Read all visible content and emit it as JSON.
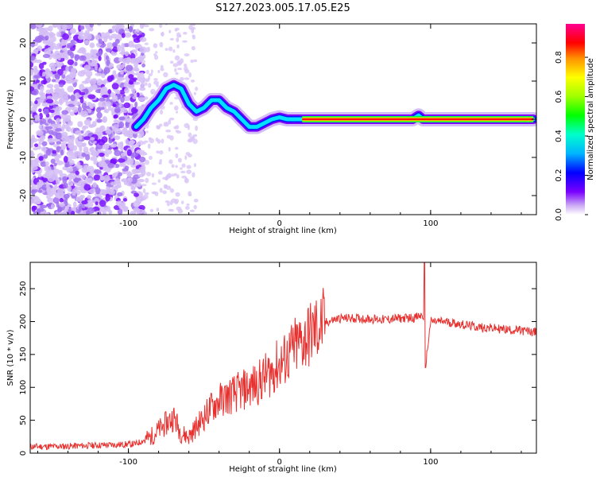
{
  "title": "S127.2023.005.17.05.E25",
  "chart_data": [
    {
      "type": "heatmap",
      "xlabel": "Height of straight line (km)",
      "ylabel": "Frequency (Hz)",
      "xlim": [
        -165,
        170
      ],
      "ylim": [
        -25,
        25
      ],
      "xticks": [
        -100,
        0,
        100
      ],
      "yticks": [
        -20,
        -10,
        0,
        10,
        20
      ],
      "colorbar": {
        "label": "Normalized spectral amplitude",
        "range": [
          0,
          0.97
        ],
        "ticks": [
          0.0,
          0.2,
          0.4,
          0.6,
          0.8
        ]
      },
      "ridge": {
        "description_points_x": [
          -95,
          -90,
          -85,
          -80,
          -75,
          -70,
          -65,
          -60,
          -55,
          -50,
          -45,
          -40,
          -35,
          -30,
          -25,
          -20,
          -15,
          -10,
          -5,
          0,
          5,
          10,
          15,
          20,
          40,
          60,
          80,
          88,
          92,
          95,
          100,
          120,
          140,
          160,
          168
        ],
        "description_points_y": [
          -2,
          0,
          3,
          5,
          8,
          9,
          8,
          4,
          2,
          3,
          5,
          5,
          3,
          2,
          0,
          -2,
          -2,
          -1,
          0,
          0.5,
          0,
          0,
          0,
          0,
          0,
          0,
          0,
          0,
          1,
          0,
          0,
          0,
          0,
          0,
          0
        ]
      }
    },
    {
      "type": "line",
      "xlabel": "Height of straight line (km)",
      "ylabel": "SNR (10 * v/v)",
      "xlim": [
        -165,
        170
      ],
      "ylim": [
        0,
        290
      ],
      "xticks": [
        -100,
        0,
        100
      ],
      "yticks": [
        0,
        50,
        100,
        150,
        200,
        250
      ],
      "series": [
        {
          "name": "SNR",
          "color": "#e8312f",
          "x": [
            -165,
            -150,
            -135,
            -120,
            -105,
            -95,
            -85,
            -80,
            -75,
            -70,
            -65,
            -60,
            -55,
            -50,
            -45,
            -40,
            -35,
            -30,
            -25,
            -20,
            -15,
            -10,
            -5,
            0,
            5,
            10,
            15,
            20,
            25,
            30,
            35,
            40,
            50,
            60,
            70,
            80,
            90,
            95,
            97,
            100,
            110,
            120,
            130,
            140,
            150,
            160,
            170
          ],
          "y": [
            10,
            10,
            11,
            12,
            13,
            14,
            25,
            35,
            45,
            55,
            30,
            25,
            40,
            55,
            70,
            80,
            85,
            90,
            95,
            100,
            105,
            115,
            125,
            135,
            145,
            160,
            170,
            180,
            190,
            198,
            202,
            205,
            205,
            204,
            203,
            205,
            206,
            210,
            140,
            200,
            200,
            196,
            192,
            190,
            188,
            186,
            184
          ]
        }
      ]
    }
  ]
}
